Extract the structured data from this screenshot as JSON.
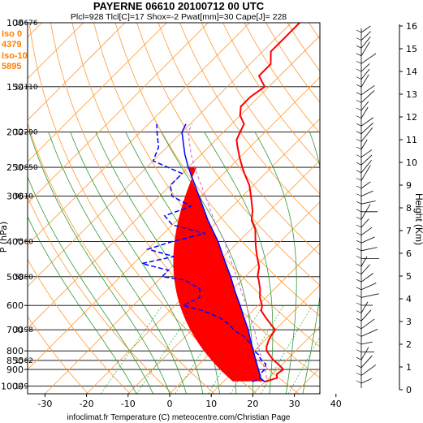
{
  "chart_data": {
    "type": "line",
    "title": "PAYERNE 06610 20100712 00 UTC",
    "subtitle": "Plcl=928 Tlcl[C]=17 Shox=-2 Pwat[mm]=30 Cape[J]= 228",
    "footer": "infoclimat.fr Temperature (C) meteocentre.com/Christian Page",
    "ylabel": "P (hPa)",
    "y2label": "Height (Km)",
    "freezing": [
      {
        "label": "Iso 0",
        "value": "4379"
      },
      {
        "label": "Iso-10",
        "value": "5895"
      }
    ],
    "xlim": [
      -33,
      48
    ],
    "ylim": [
      1050,
      100
    ],
    "xticks": [
      "-30",
      "-20",
      "-10",
      "0",
      "10",
      "20",
      "30",
      "40"
    ],
    "yticks": [
      {
        "p": 100,
        "label": "100"
      },
      {
        "p": 150,
        "label": "150"
      },
      {
        "p": 200,
        "label": "200"
      },
      {
        "p": 250,
        "label": "250"
      },
      {
        "p": 300,
        "label": "300"
      },
      {
        "p": 400,
        "label": "400"
      },
      {
        "p": 500,
        "label": "500"
      },
      {
        "p": 600,
        "label": "600"
      },
      {
        "p": 700,
        "label": "700"
      },
      {
        "p": 800,
        "label": "800"
      },
      {
        "p": 850,
        "label": "850"
      },
      {
        "p": 900,
        "label": "900"
      },
      {
        "p": 1000,
        "label": "1000"
      }
    ],
    "heights": [
      {
        "p": 100,
        "label": "16676"
      },
      {
        "p": 150,
        "label": "14110"
      },
      {
        "p": 200,
        "label": "12290"
      },
      {
        "p": 250,
        "label": "10850"
      },
      {
        "p": 300,
        "label": "9610"
      },
      {
        "p": 400,
        "label": "7560"
      },
      {
        "p": 500,
        "label": "5880"
      },
      {
        "p": 700,
        "label": "3198"
      },
      {
        "p": 850,
        "label": "1562"
      },
      {
        "p": 1000,
        "label": "149"
      }
    ],
    "km_ticks": [
      "0",
      "1",
      "2",
      "3",
      "4",
      "5",
      "6",
      "7",
      "8",
      "9",
      "10",
      "11",
      "12",
      "13",
      "14",
      "15",
      "16"
    ],
    "series": [
      {
        "name": "Temperature",
        "color": "#ff0000",
        "points": [
          [
            973,
            20
          ],
          [
            950,
            22
          ],
          [
            925,
            21
          ],
          [
            900,
            21.5
          ],
          [
            870,
            19
          ],
          [
            850,
            17
          ],
          [
            825,
            15
          ],
          [
            800,
            13
          ],
          [
            780,
            12
          ],
          [
            750,
            11
          ],
          [
            730,
            10.5
          ],
          [
            700,
            10
          ],
          [
            680,
            8
          ],
          [
            650,
            5
          ],
          [
            620,
            2
          ],
          [
            600,
            1
          ],
          [
            570,
            -1.5
          ],
          [
            540,
            -3.5
          ],
          [
            510,
            -6
          ],
          [
            500,
            -7
          ],
          [
            470,
            -9
          ],
          [
            440,
            -12
          ],
          [
            420,
            -14
          ],
          [
            400,
            -16
          ],
          [
            370,
            -19
          ],
          [
            350,
            -22
          ],
          [
            330,
            -24
          ],
          [
            300,
            -28
          ],
          [
            280,
            -31
          ],
          [
            260,
            -35
          ],
          [
            250,
            -37
          ],
          [
            235,
            -40
          ],
          [
            220,
            -43
          ],
          [
            210,
            -45
          ],
          [
            200,
            -46
          ],
          [
            190,
            -47
          ],
          [
            180,
            -50
          ],
          [
            170,
            -52
          ],
          [
            160,
            -52
          ],
          [
            150,
            -51
          ],
          [
            140,
            -55
          ],
          [
            130,
            -55
          ],
          [
            120,
            -58
          ],
          [
            110,
            -58
          ],
          [
            100,
            -58
          ]
        ]
      },
      {
        "name": "Dew point",
        "color": "#0000ff",
        "dashed": true,
        "points": [
          [
            973,
            17
          ],
          [
            950,
            18
          ],
          [
            925,
            17
          ],
          [
            900,
            17
          ],
          [
            870,
            16
          ],
          [
            850,
            14
          ],
          [
            820,
            12
          ],
          [
            800,
            10
          ],
          [
            760,
            7
          ],
          [
            730,
            4
          ],
          [
            700,
            0
          ],
          [
            680,
            -2
          ],
          [
            650,
            -6
          ],
          [
            620,
            -12
          ],
          [
            600,
            -18
          ],
          [
            570,
            -16
          ],
          [
            540,
            -18
          ],
          [
            510,
            -24
          ],
          [
            500,
            -30
          ],
          [
            480,
            -30
          ],
          [
            460,
            -38
          ],
          [
            440,
            -32
          ],
          [
            420,
            -40
          ],
          [
            400,
            -36
          ],
          [
            380,
            -30
          ],
          [
            360,
            -40
          ],
          [
            340,
            -44
          ],
          [
            320,
            -40
          ],
          [
            300,
            -47
          ],
          [
            280,
            -50
          ],
          [
            260,
            -50
          ],
          [
            240,
            -60
          ],
          [
            220,
            -62
          ],
          [
            200,
            -66
          ],
          [
            190,
            -68
          ]
        ]
      },
      {
        "name": "Parcel",
        "color": "#0000ff",
        "points": [
          [
            973,
            20
          ],
          [
            950,
            18
          ],
          [
            928,
            17
          ],
          [
            900,
            15.5
          ],
          [
            850,
            12.7
          ],
          [
            800,
            9.8
          ],
          [
            750,
            6.7
          ],
          [
            700,
            3.5
          ],
          [
            650,
            -0.3
          ],
          [
            600,
            -4.3
          ],
          [
            550,
            -8.8
          ],
          [
            500,
            -13.5
          ],
          [
            450,
            -19
          ],
          [
            400,
            -25
          ],
          [
            350,
            -32.5
          ],
          [
            300,
            -40.5
          ],
          [
            250,
            -50
          ],
          [
            230,
            -54
          ],
          [
            200,
            -60
          ],
          [
            190,
            -61
          ]
        ]
      }
    ]
  }
}
